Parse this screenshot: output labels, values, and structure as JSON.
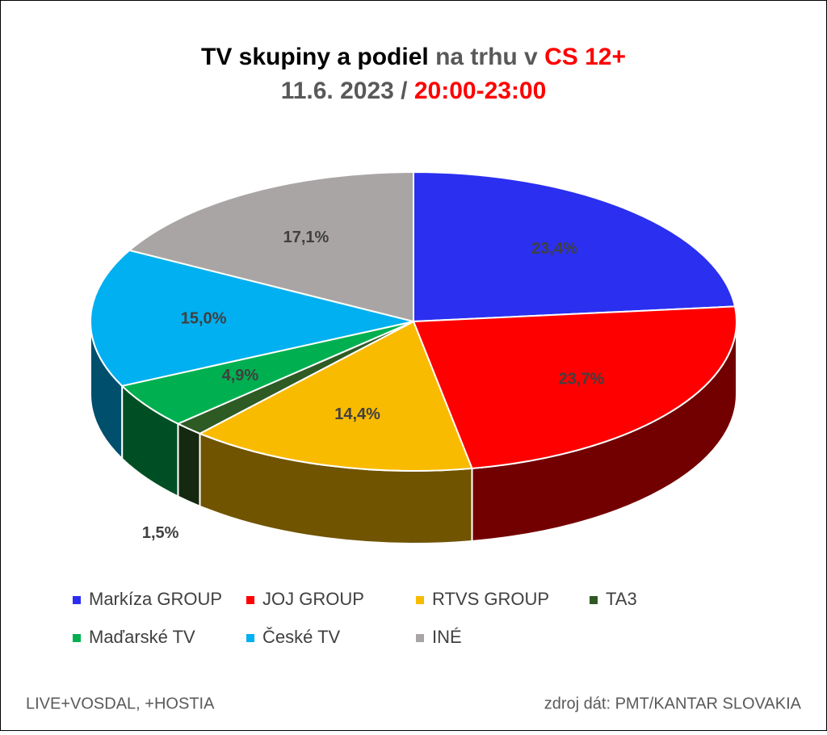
{
  "chart_data": {
    "type": "pie3d",
    "title": [
      "TV skupiny a podiel",
      "na trhu v",
      "CS 12+"
    ],
    "subtitle": [
      "11.6. 2023 /",
      "20:00-23:00"
    ],
    "categories": [
      "Markíza GROUP",
      "JOJ GROUP",
      "RTVS GROUP",
      "TA3",
      "Maďarské  TV",
      "České  TV",
      "INÉ"
    ],
    "values": [
      23.4,
      23.7,
      14.4,
      1.5,
      4.9,
      15.0,
      17.1
    ],
    "value_labels": [
      "23,4%",
      "23,7%",
      "14,4%",
      "1,5%",
      "4,9%",
      "15,0%",
      "17,1%"
    ],
    "colors": [
      "#2b2ff0",
      "#ff0000",
      "#f9bb00",
      "#2e5a24",
      "#00b050",
      "#00b0f0",
      "#a9a5a5"
    ],
    "notes": [
      "LIVE+VOSDAL, +HOSTIA",
      "zdroj dát: PMT/KANTAR SLOVAKIA"
    ]
  }
}
